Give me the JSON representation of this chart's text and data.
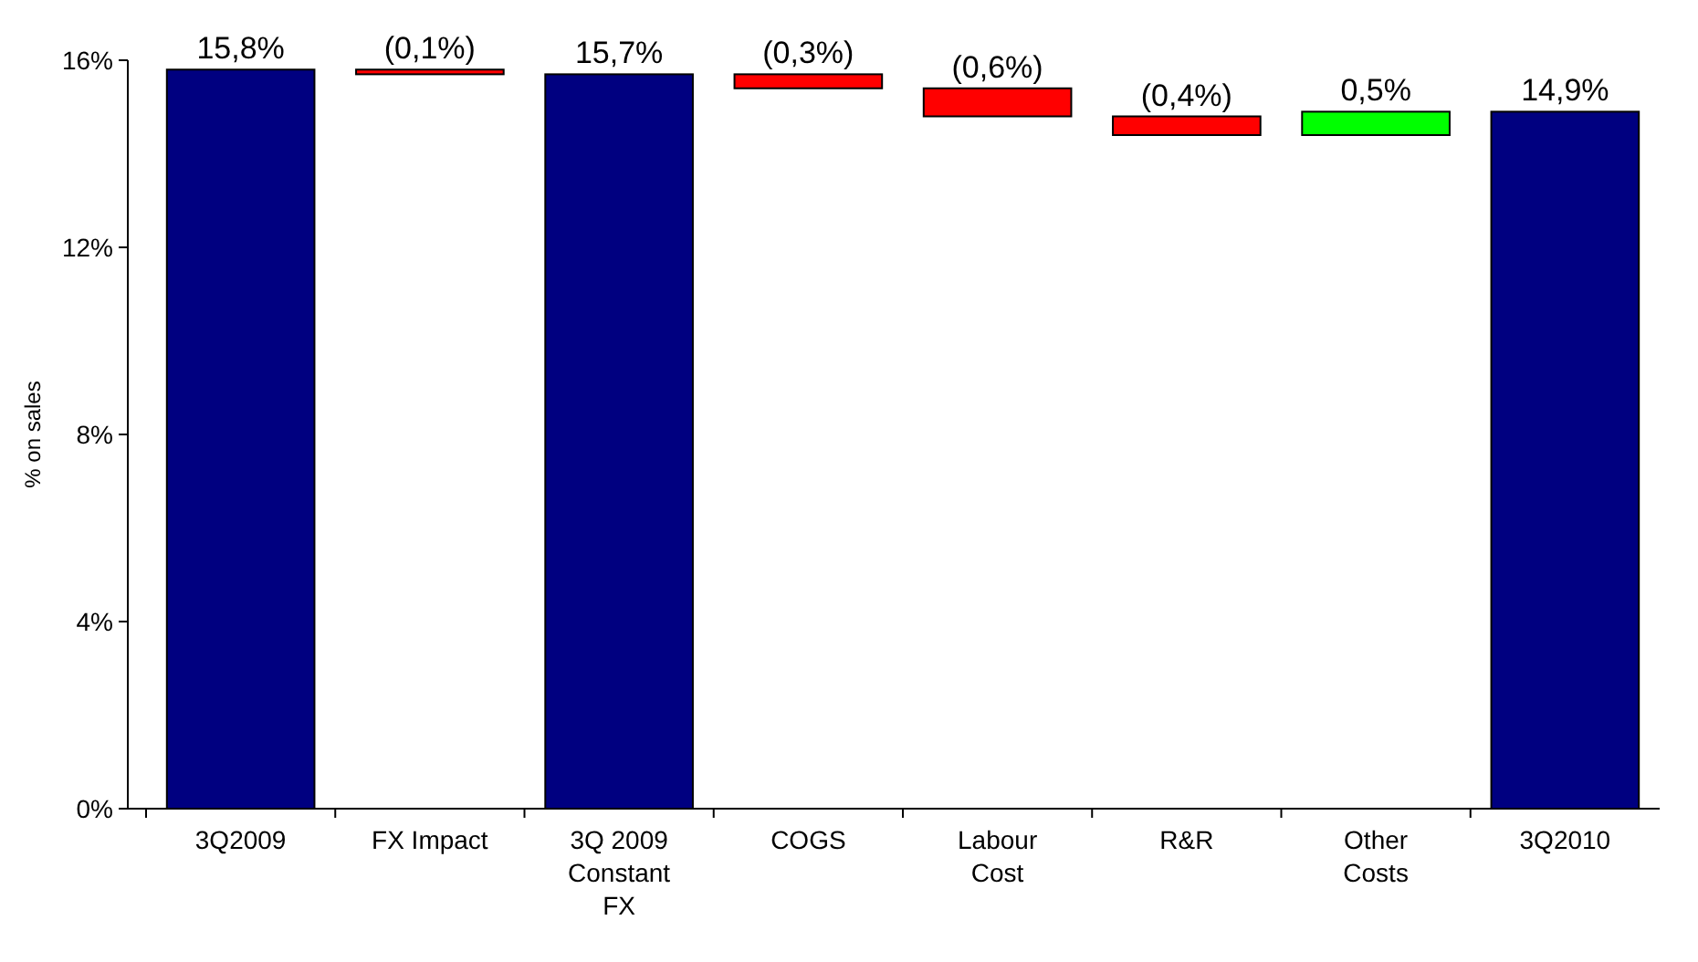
{
  "chart_data": {
    "type": "bar",
    "ylabel": "% on sales",
    "categories": [
      "3Q2009",
      "FX Impact",
      "3Q 2009 Constant FX",
      "COGS",
      "Labour Cost",
      "R&R",
      "Other Costs",
      "3Q2010"
    ],
    "values": [
      15.8,
      -0.1,
      15.7,
      -0.3,
      -0.6,
      -0.4,
      0.5,
      14.9
    ],
    "base": [
      0,
      15.8,
      0,
      15.7,
      15.4,
      14.8,
      14.4,
      0
    ],
    "colors": [
      "#000080",
      "#ff0000",
      "#000080",
      "#ff0000",
      "#ff0000",
      "#ff0000",
      "#00ff00",
      "#000080"
    ],
    "value_labels": [
      "15,8%",
      "(0,1%)",
      "15,7%",
      "(0,3%)",
      "(0,6%)",
      "(0,4%)",
      "0,5%",
      "14,9%"
    ],
    "ylim": [
      0,
      16
    ],
    "yticks": [
      {
        "value": 0,
        "label": "0%"
      },
      {
        "value": 4,
        "label": "4%"
      },
      {
        "value": 8,
        "label": "8%"
      },
      {
        "value": 12,
        "label": "12%"
      },
      {
        "value": 16,
        "label": "16%"
      }
    ],
    "grid": false
  }
}
